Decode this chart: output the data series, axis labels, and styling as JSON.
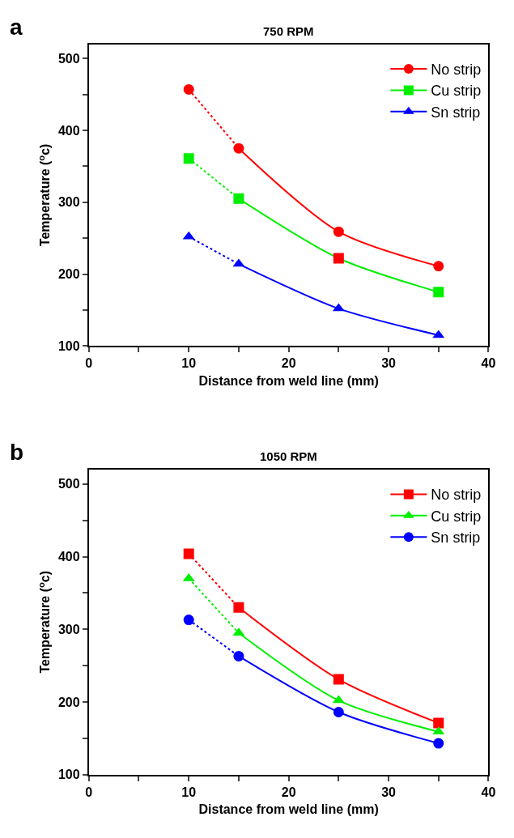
{
  "chart_data": [
    {
      "type": "line",
      "title": "750 RPM",
      "annotations": [
        "a"
      ],
      "xlabel": "Distance from weld line (mm)",
      "ylabel": "Temperature ($^{o}$c)",
      "xlim": [
        0,
        40
      ],
      "xticks": [
        0,
        {
          "value": 5,
          "label": null
        },
        10,
        {
          "value": 15,
          "label": null
        },
        20,
        {
          "value": 25,
          "label": null
        },
        30,
        {
          "value": 35,
          "label": null
        },
        40
      ],
      "ylim": [
        100,
        520
      ],
      "yticks": [
        100,
        {
          "value": 150,
          "label": null
        },
        200,
        {
          "value": 250,
          "label": null
        },
        300,
        {
          "value": 350,
          "label": null
        },
        400,
        {
          "value": 450,
          "label": null
        },
        500
      ],
      "x": [
        10,
        15,
        25,
        35
      ],
      "legend": "top right",
      "series": [
        {
          "name": "No strip",
          "color": "#ff0000",
          "marker": "circle",
          "values": [
            457,
            375,
            259,
            211
          ]
        },
        {
          "name": "Cu strip",
          "color": "#00ee00",
          "marker": "square",
          "colors": [
            "#00ee00",
            "#00ee00",
            "#ff0000",
            "#00ee00"
          ],
          "values": [
            361,
            305,
            222,
            175
          ]
        },
        {
          "name": "Sn strip",
          "color": "#0000ff",
          "marker": "triangle",
          "values": [
            252,
            214,
            152,
            115
          ]
        }
      ]
    },
    {
      "type": "line",
      "title": "1050 RPM",
      "annotations": [
        "b"
      ],
      "xlabel": "Distance from weld line (mm)",
      "ylabel": "Temperature ($^{o}$c)",
      "xlim": [
        0,
        40
      ],
      "xticks": [
        0,
        {
          "value": 5,
          "label": null
        },
        10,
        {
          "value": 15,
          "label": null
        },
        20,
        {
          "value": 25,
          "label": null
        },
        30,
        {
          "value": 35,
          "label": null
        },
        40
      ],
      "ylim": [
        100,
        520
      ],
      "yticks": [
        100,
        {
          "value": 150,
          "label": null
        },
        200,
        {
          "value": 250,
          "label": null
        },
        300,
        {
          "value": 350,
          "label": null
        },
        400,
        {
          "value": 450,
          "label": null
        },
        500
      ],
      "x": [
        10,
        15,
        25,
        35
      ],
      "legend": "top right",
      "series": [
        {
          "name": "No strip",
          "color": "#ff0000",
          "marker": "square",
          "values": [
            404,
            330,
            231,
            171
          ]
        },
        {
          "name": "Cu strip",
          "color": "#00ee00",
          "marker": "triangle",
          "values": [
            370,
            295,
            202,
            159
          ]
        },
        {
          "name": "Sn strip",
          "color": "#0000ff",
          "marker": "circle",
          "values": [
            313,
            263,
            186,
            143
          ]
        }
      ]
    }
  ]
}
